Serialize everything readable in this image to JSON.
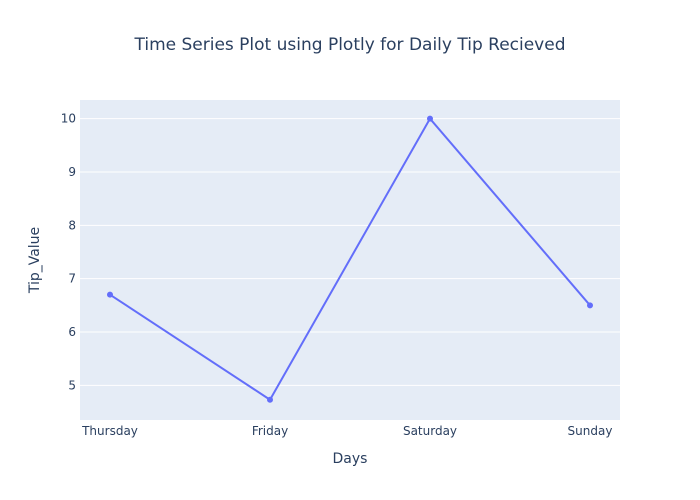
{
  "chart_data": {
    "type": "line",
    "title": "Time Series Plot using Plotly for Daily Tip Recieved",
    "xlabel": "Days",
    "ylabel": "Tip_Value",
    "categories": [
      "Thursday",
      "Friday",
      "Saturday",
      "Sunday"
    ],
    "series": [
      {
        "values": [
          6.7,
          4.73,
          10.0,
          6.5
        ],
        "color": "#636efa",
        "mode": "lines+markers"
      }
    ],
    "ylim": [
      4.35,
      10.35
    ],
    "yticks": [
      5,
      6,
      7,
      8,
      9,
      10
    ],
    "grid": true,
    "legend": "none",
    "colors": {
      "plot_background": "#e5ecf6",
      "gridline": "#ffffff",
      "text": "#2a3f5f"
    }
  }
}
